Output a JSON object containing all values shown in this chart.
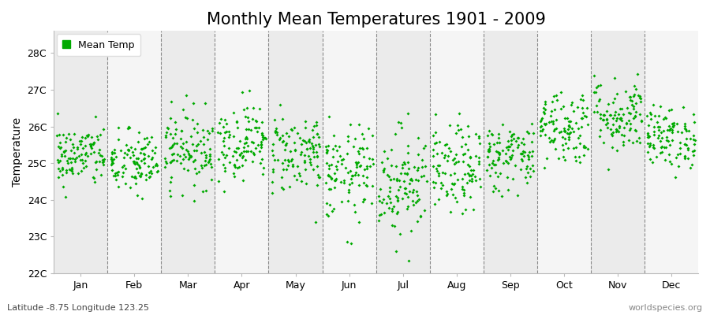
{
  "title": "Monthly Mean Temperatures 1901 - 2009",
  "ylabel": "Temperature",
  "subtitle": "Latitude -8.75 Longitude 123.25",
  "watermark": "worldspecies.org",
  "months": [
    "Jan",
    "Feb",
    "Mar",
    "Apr",
    "May",
    "Jun",
    "Jul",
    "Aug",
    "Sep",
    "Oct",
    "Nov",
    "Dec"
  ],
  "month_means": [
    25.2,
    25.0,
    25.4,
    25.6,
    25.3,
    24.7,
    24.5,
    24.8,
    25.2,
    26.0,
    26.3,
    25.7
  ],
  "month_stds": [
    0.42,
    0.45,
    0.52,
    0.52,
    0.55,
    0.65,
    0.75,
    0.6,
    0.48,
    0.52,
    0.52,
    0.42
  ],
  "ylim": [
    22.0,
    28.6
  ],
  "yticks": [
    22,
    23,
    24,
    25,
    26,
    27,
    28
  ],
  "yticklabels": [
    "22C",
    "23C",
    "24C",
    "25C",
    "26C",
    "27C",
    "28C"
  ],
  "n_years": 109,
  "seed": 42,
  "dot_color": "#00AA00",
  "dot_size": 4,
  "bg_color": "#FFFFFF",
  "band_color_odd": "#EBEBEB",
  "band_color_even": "#F5F5F5",
  "dashed_line_color": "#888888",
  "title_fontsize": 15,
  "axis_label_fontsize": 10,
  "tick_fontsize": 9,
  "legend_fontsize": 9
}
